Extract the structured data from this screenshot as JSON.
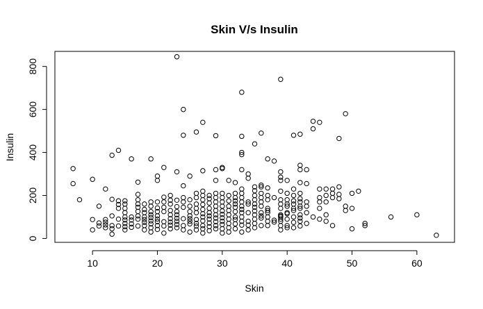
{
  "chart_data": {
    "type": "scatter",
    "title": "Skin V/s Insulin",
    "xlabel": "Skin",
    "ylabel": "Insulin",
    "xlim": [
      4.2,
      65.8
    ],
    "ylim": [
      -18,
      870
    ],
    "xticks": [
      10,
      20,
      30,
      40,
      50,
      60
    ],
    "yticks": [
      0,
      200,
      400,
      600,
      800
    ],
    "grid": false,
    "legend": "none",
    "point_color": "#000000",
    "points": [
      [
        7,
        325
      ],
      [
        7,
        255
      ],
      [
        8,
        180
      ],
      [
        10,
        40
      ],
      [
        10,
        88
      ],
      [
        10,
        275
      ],
      [
        11,
        58
      ],
      [
        11,
        72
      ],
      [
        11,
        150
      ],
      [
        12,
        50
      ],
      [
        12,
        63
      ],
      [
        12,
        76
      ],
      [
        12,
        88
      ],
      [
        12,
        230
      ],
      [
        13,
        20
      ],
      [
        13,
        45
      ],
      [
        13,
        60
      ],
      [
        13,
        105
      ],
      [
        13,
        182
      ],
      [
        13,
        387
      ],
      [
        14,
        58
      ],
      [
        14,
        90
      ],
      [
        14,
        140
      ],
      [
        14,
        158
      ],
      [
        14,
        175
      ],
      [
        14,
        410
      ],
      [
        15,
        40
      ],
      [
        15,
        55
      ],
      [
        15,
        70
      ],
      [
        15,
        86
      ],
      [
        15,
        100
      ],
      [
        15,
        120
      ],
      [
        15,
        140
      ],
      [
        15,
        160
      ],
      [
        15,
        175
      ],
      [
        16,
        52
      ],
      [
        16,
        68
      ],
      [
        16,
        86
      ],
      [
        16,
        100
      ],
      [
        16,
        370
      ],
      [
        17,
        58
      ],
      [
        17,
        90
      ],
      [
        17,
        105
      ],
      [
        17,
        126
      ],
      [
        17,
        145
      ],
      [
        17,
        160
      ],
      [
        17,
        180
      ],
      [
        17,
        205
      ],
      [
        17,
        262
      ],
      [
        18,
        40
      ],
      [
        18,
        60
      ],
      [
        18,
        75
      ],
      [
        18,
        88
      ],
      [
        18,
        100
      ],
      [
        18,
        120
      ],
      [
        18,
        135
      ],
      [
        18,
        160
      ],
      [
        19,
        30
      ],
      [
        19,
        50
      ],
      [
        19,
        68
      ],
      [
        19,
        82
      ],
      [
        19,
        97
      ],
      [
        19,
        110
      ],
      [
        19,
        125
      ],
      [
        19,
        150
      ],
      [
        19,
        170
      ],
      [
        19,
        370
      ],
      [
        20,
        42
      ],
      [
        20,
        60
      ],
      [
        20,
        78
      ],
      [
        20,
        90
      ],
      [
        20,
        105
      ],
      [
        20,
        125
      ],
      [
        20,
        142
      ],
      [
        20,
        170
      ],
      [
        20,
        270
      ],
      [
        20,
        290
      ],
      [
        21,
        25
      ],
      [
        21,
        58
      ],
      [
        21,
        78
      ],
      [
        21,
        125
      ],
      [
        21,
        145
      ],
      [
        21,
        170
      ],
      [
        21,
        192
      ],
      [
        21,
        330
      ],
      [
        22,
        45
      ],
      [
        22,
        62
      ],
      [
        22,
        76
      ],
      [
        22,
        92
      ],
      [
        22,
        110
      ],
      [
        22,
        130
      ],
      [
        22,
        160
      ],
      [
        22,
        178
      ],
      [
        22,
        200
      ],
      [
        23,
        50
      ],
      [
        23,
        65
      ],
      [
        23,
        80
      ],
      [
        23,
        94
      ],
      [
        23,
        110
      ],
      [
        23,
        125
      ],
      [
        23,
        148
      ],
      [
        23,
        178
      ],
      [
        23,
        310
      ],
      [
        23,
        845
      ],
      [
        24,
        40
      ],
      [
        24,
        60
      ],
      [
        24,
        92
      ],
      [
        24,
        145
      ],
      [
        24,
        170
      ],
      [
        24,
        190
      ],
      [
        24,
        245
      ],
      [
        24,
        480
      ],
      [
        24,
        600
      ],
      [
        25,
        30
      ],
      [
        25,
        68
      ],
      [
        25,
        80
      ],
      [
        25,
        92
      ],
      [
        25,
        105
      ],
      [
        25,
        125
      ],
      [
        25,
        150
      ],
      [
        25,
        180
      ],
      [
        25,
        290
      ],
      [
        26,
        40
      ],
      [
        26,
        58
      ],
      [
        26,
        70
      ],
      [
        26,
        88
      ],
      [
        26,
        120
      ],
      [
        26,
        140
      ],
      [
        26,
        160
      ],
      [
        26,
        190
      ],
      [
        26,
        210
      ],
      [
        26,
        495
      ],
      [
        27,
        25
      ],
      [
        27,
        45
      ],
      [
        27,
        60
      ],
      [
        27,
        82
      ],
      [
        27,
        100
      ],
      [
        27,
        115
      ],
      [
        27,
        135
      ],
      [
        27,
        158
      ],
      [
        27,
        180
      ],
      [
        27,
        200
      ],
      [
        27,
        220
      ],
      [
        27,
        315
      ],
      [
        27,
        540
      ],
      [
        28,
        36
      ],
      [
        28,
        55
      ],
      [
        28,
        72
      ],
      [
        28,
        90
      ],
      [
        28,
        105
      ],
      [
        28,
        120
      ],
      [
        28,
        140
      ],
      [
        28,
        165
      ],
      [
        28,
        185
      ],
      [
        28,
        200
      ],
      [
        29,
        45
      ],
      [
        29,
        60
      ],
      [
        29,
        78
      ],
      [
        29,
        95
      ],
      [
        29,
        110
      ],
      [
        29,
        130
      ],
      [
        29,
        150
      ],
      [
        29,
        170
      ],
      [
        29,
        190
      ],
      [
        29,
        210
      ],
      [
        29,
        270
      ],
      [
        29,
        320
      ],
      [
        29,
        478
      ],
      [
        30,
        25
      ],
      [
        30,
        45
      ],
      [
        30,
        65
      ],
      [
        30,
        80
      ],
      [
        30,
        96
      ],
      [
        30,
        112
      ],
      [
        30,
        128
      ],
      [
        30,
        150
      ],
      [
        30,
        170
      ],
      [
        30,
        190
      ],
      [
        30,
        210
      ],
      [
        30,
        325
      ],
      [
        30,
        330
      ],
      [
        31,
        30
      ],
      [
        31,
        50
      ],
      [
        31,
        70
      ],
      [
        31,
        90
      ],
      [
        31,
        110
      ],
      [
        31,
        130
      ],
      [
        31,
        150
      ],
      [
        31,
        175
      ],
      [
        31,
        200
      ],
      [
        31,
        270
      ],
      [
        32,
        45
      ],
      [
        32,
        68
      ],
      [
        32,
        88
      ],
      [
        32,
        100
      ],
      [
        32,
        125
      ],
      [
        32,
        145
      ],
      [
        32,
        160
      ],
      [
        32,
        175
      ],
      [
        32,
        190
      ],
      [
        32,
        210
      ],
      [
        32,
        260
      ],
      [
        33,
        30
      ],
      [
        33,
        62
      ],
      [
        33,
        80
      ],
      [
        33,
        100
      ],
      [
        33,
        120
      ],
      [
        33,
        135
      ],
      [
        33,
        150
      ],
      [
        33,
        170
      ],
      [
        33,
        190
      ],
      [
        33,
        210
      ],
      [
        33,
        230
      ],
      [
        33,
        320
      ],
      [
        33,
        390
      ],
      [
        33,
        400
      ],
      [
        33,
        475
      ],
      [
        33,
        680
      ],
      [
        34,
        40
      ],
      [
        34,
        62
      ],
      [
        34,
        80
      ],
      [
        34,
        120
      ],
      [
        34,
        160
      ],
      [
        34,
        170
      ],
      [
        34,
        280
      ],
      [
        34,
        300
      ],
      [
        35,
        50
      ],
      [
        35,
        70
      ],
      [
        35,
        90
      ],
      [
        35,
        110
      ],
      [
        35,
        128
      ],
      [
        35,
        145
      ],
      [
        35,
        160
      ],
      [
        35,
        180
      ],
      [
        35,
        200
      ],
      [
        35,
        222
      ],
      [
        35,
        240
      ],
      [
        35,
        440
      ],
      [
        36,
        60
      ],
      [
        36,
        95
      ],
      [
        36,
        105
      ],
      [
        36,
        120
      ],
      [
        36,
        150
      ],
      [
        36,
        170
      ],
      [
        36,
        190
      ],
      [
        36,
        210
      ],
      [
        36,
        240
      ],
      [
        36,
        248
      ],
      [
        36,
        490
      ],
      [
        37,
        60
      ],
      [
        37,
        80
      ],
      [
        37,
        100
      ],
      [
        37,
        120
      ],
      [
        37,
        130
      ],
      [
        37,
        140
      ],
      [
        37,
        180
      ],
      [
        37,
        200
      ],
      [
        37,
        235
      ],
      [
        37,
        370
      ],
      [
        38,
        76
      ],
      [
        38,
        85
      ],
      [
        38,
        190
      ],
      [
        38,
        360
      ],
      [
        39,
        40
      ],
      [
        39,
        60
      ],
      [
        39,
        80
      ],
      [
        39,
        90
      ],
      [
        39,
        100
      ],
      [
        39,
        105
      ],
      [
        39,
        110
      ],
      [
        39,
        140
      ],
      [
        39,
        160
      ],
      [
        39,
        180
      ],
      [
        39,
        220
      ],
      [
        39,
        270
      ],
      [
        39,
        285
      ],
      [
        39,
        310
      ],
      [
        39,
        740
      ],
      [
        40,
        50
      ],
      [
        40,
        60
      ],
      [
        40,
        90
      ],
      [
        40,
        115
      ],
      [
        40,
        120
      ],
      [
        40,
        150
      ],
      [
        40,
        160
      ],
      [
        40,
        180
      ],
      [
        40,
        210
      ],
      [
        40,
        270
      ],
      [
        41,
        50
      ],
      [
        41,
        75
      ],
      [
        41,
        100
      ],
      [
        41,
        130
      ],
      [
        41,
        140
      ],
      [
        41,
        160
      ],
      [
        41,
        175
      ],
      [
        41,
        200
      ],
      [
        41,
        230
      ],
      [
        41,
        480
      ],
      [
        42,
        58
      ],
      [
        42,
        80
      ],
      [
        42,
        95
      ],
      [
        42,
        110
      ],
      [
        42,
        140
      ],
      [
        42,
        150
      ],
      [
        42,
        170
      ],
      [
        42,
        185
      ],
      [
        42,
        210
      ],
      [
        42,
        260
      ],
      [
        42,
        320
      ],
      [
        42,
        340
      ],
      [
        42,
        485
      ],
      [
        43,
        70
      ],
      [
        43,
        120
      ],
      [
        43,
        150
      ],
      [
        43,
        170
      ],
      [
        43,
        255
      ],
      [
        43,
        320
      ],
      [
        44,
        100
      ],
      [
        44,
        510
      ],
      [
        44,
        545
      ],
      [
        45,
        90
      ],
      [
        45,
        140
      ],
      [
        45,
        170
      ],
      [
        45,
        190
      ],
      [
        45,
        230
      ],
      [
        45,
        540
      ],
      [
        46,
        80
      ],
      [
        46,
        110
      ],
      [
        46,
        170
      ],
      [
        46,
        200
      ],
      [
        46,
        230
      ],
      [
        47,
        60
      ],
      [
        47,
        190
      ],
      [
        47,
        210
      ],
      [
        47,
        230
      ],
      [
        48,
        185
      ],
      [
        48,
        205
      ],
      [
        48,
        240
      ],
      [
        48,
        465
      ],
      [
        49,
        130
      ],
      [
        49,
        150
      ],
      [
        49,
        580
      ],
      [
        50,
        45
      ],
      [
        50,
        140
      ],
      [
        50,
        210
      ],
      [
        51,
        220
      ],
      [
        52,
        60
      ],
      [
        52,
        70
      ],
      [
        56,
        100
      ],
      [
        60,
        110
      ],
      [
        63,
        15
      ]
    ]
  }
}
